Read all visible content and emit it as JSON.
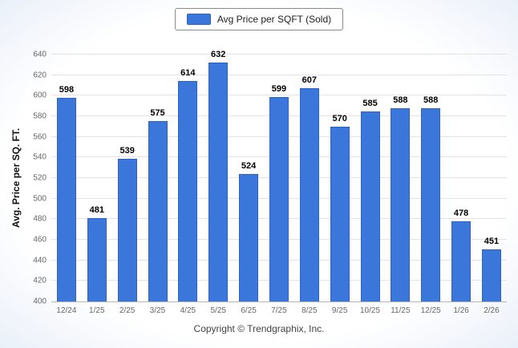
{
  "legend": {
    "label": "Avg Price per SQFT (Sold)",
    "swatch_color": "#3b76db"
  },
  "footer": {
    "text": "Copyright © Trendgraphix, Inc."
  },
  "chart_data": {
    "type": "bar",
    "title": "",
    "xlabel": "",
    "ylabel": "Avg. Price per SQ. FT.",
    "categories": [
      "12/24",
      "1/25",
      "2/25",
      "3/25",
      "4/25",
      "5/25",
      "6/25",
      "7/25",
      "8/25",
      "9/25",
      "10/25",
      "11/25",
      "12/25",
      "1/26",
      "2/26"
    ],
    "values": [
      598,
      481,
      539,
      575,
      614,
      632,
      524,
      599,
      607,
      570,
      585,
      588,
      588,
      478,
      451
    ],
    "series_name": "Avg Price per SQFT (Sold)",
    "ylim": [
      400,
      640
    ],
    "ytick_step": 20,
    "bar_color": "#3b76db",
    "grid": "horizontal",
    "legend_position": "top"
  }
}
